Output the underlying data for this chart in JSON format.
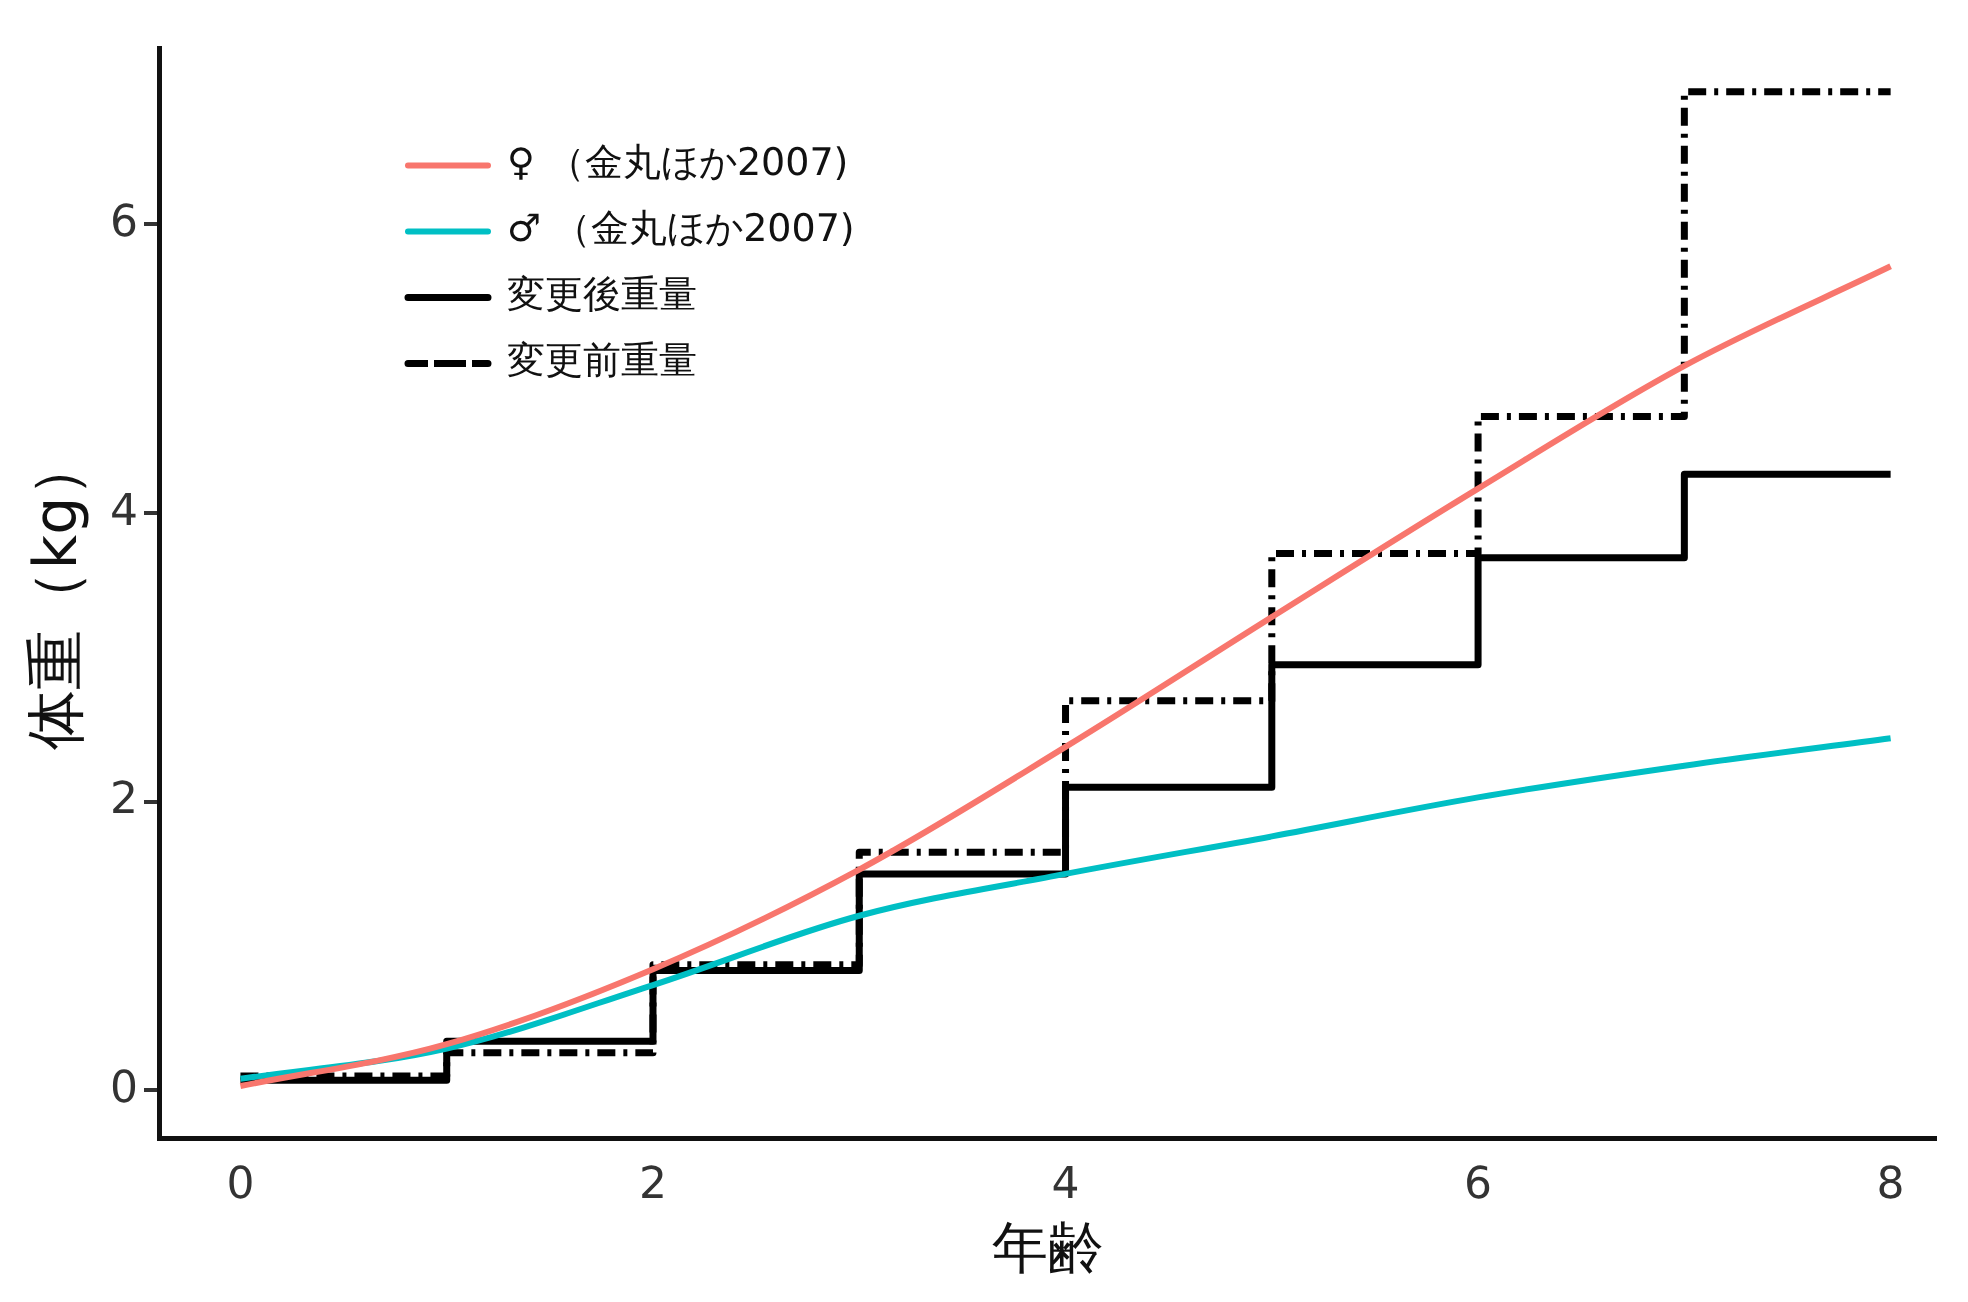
{
  "chart_data": {
    "type": "line",
    "xlabel": "年齢",
    "ylabel": "体重（kg）",
    "x": [
      0,
      1,
      2,
      3,
      4,
      5,
      6,
      7,
      8
    ],
    "xlim": [
      -0.39,
      8.22
    ],
    "xticks": [
      0,
      2,
      4,
      6,
      8
    ],
    "ylim": [
      -0.33,
      7.22
    ],
    "yticks": [
      0,
      2,
      4,
      6
    ],
    "grid": false,
    "legend": "top left",
    "marker": "none",
    "series": [
      {
        "name": "♀ （金丸ほか2007)",
        "color": "#f8766d",
        "line_style": "solid",
        "values": [
          0.03,
          0.32,
          0.84,
          1.53,
          2.38,
          3.28,
          4.17,
          5.02,
          5.71
        ]
      },
      {
        "name": "♂ （金丸ほか2007)",
        "color": "#00bfc4",
        "line_style": "solid",
        "values": [
          0.08,
          0.29,
          0.73,
          1.21,
          1.5,
          1.76,
          2.03,
          2.25,
          2.44
        ]
      },
      {
        "name": "変更後重量",
        "type": "step",
        "color": "#000000",
        "line_style": "solid",
        "values": [
          0.07,
          0.34,
          0.83,
          1.5,
          2.1,
          2.95,
          3.69,
          4.27,
          4.27
        ]
      },
      {
        "name": "変更前重量",
        "type": "step",
        "color": "#000000",
        "line_style": "dashed",
        "values": [
          0.1,
          0.26,
          0.87,
          1.65,
          2.7,
          3.72,
          4.67,
          6.92,
          6.92
        ]
      }
    ]
  }
}
